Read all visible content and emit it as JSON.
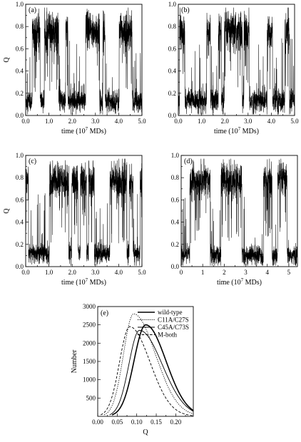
{
  "chart_data": [
    {
      "type": "line",
      "panel_label": "(a)",
      "xlabel": "time (10",
      "xlabel_sup": "7",
      "xlabel_tail": " MDs)",
      "ylabel": "Q",
      "xlim": [
        0,
        5
      ],
      "ylim": [
        0,
        1
      ],
      "x_ticks": [
        0,
        0.5,
        1,
        1.5,
        2,
        2.5,
        3,
        3.5,
        4,
        4.5,
        5
      ],
      "x_tick_labels": [
        "0.0",
        "1.0",
        "2.0",
        "3.0",
        "4.0",
        "5.0"
      ],
      "y_tick_labels": [
        "0.0",
        "0.2",
        "0.4",
        "0.6",
        "0.8",
        "1.0"
      ],
      "y_ticks": [
        0,
        0.1,
        0.2,
        0.3,
        0.4,
        0.5,
        0.6,
        0.7,
        0.8,
        0.9,
        1.0
      ],
      "series": [
        {
          "x_start": 0,
          "x_end": 5,
          "high_mean": 0.76,
          "low_mean": 0.13,
          "noise": 0.085,
          "segments": [
            [
              0.0,
              0.28,
              "L"
            ],
            [
              0.28,
              0.62,
              "H"
            ],
            [
              0.62,
              0.8,
              "L"
            ],
            [
              0.8,
              1.42,
              "H"
            ],
            [
              1.42,
              1.72,
              "L"
            ],
            [
              1.72,
              1.82,
              "H"
            ],
            [
              1.82,
              2.58,
              "L"
            ],
            [
              2.58,
              3.18,
              "H"
            ],
            [
              3.18,
              3.32,
              "L"
            ],
            [
              3.32,
              3.42,
              "H"
            ],
            [
              3.42,
              4.02,
              "L"
            ],
            [
              4.02,
              4.58,
              "H"
            ],
            [
              4.58,
              5.0,
              "L"
            ]
          ]
        }
      ]
    },
    {
      "type": "line",
      "panel_label": "(b)",
      "xlabel": "time (10",
      "xlabel_sup": "7",
      "xlabel_tail": " MDs)",
      "ylabel": "",
      "xlim": [
        0,
        5
      ],
      "ylim": [
        0,
        1
      ],
      "x_ticks": [
        0,
        0.5,
        1,
        1.5,
        2,
        2.5,
        3,
        3.5,
        4,
        4.5,
        5
      ],
      "x_tick_labels": [
        "0.0",
        "1.0",
        "2.0",
        "3.0",
        "4.0",
        "5.0"
      ],
      "y_tick_labels": [
        "0.0",
        "0.2",
        "0.4",
        "0.6",
        "0.8",
        "1.0"
      ],
      "y_ticks": [
        0,
        0.1,
        0.2,
        0.3,
        0.4,
        0.5,
        0.6,
        0.7,
        0.8,
        0.9,
        1.0
      ],
      "series": [
        {
          "x_start": 0,
          "x_end": 5,
          "high_mean": 0.75,
          "low_mean": 0.13,
          "noise": 0.09,
          "segments": [
            [
              0.0,
              0.05,
              "L"
            ],
            [
              0.05,
              0.28,
              "H"
            ],
            [
              0.28,
              1.22,
              "L"
            ],
            [
              1.22,
              1.38,
              "H"
            ],
            [
              1.38,
              1.72,
              "L"
            ],
            [
              1.72,
              1.85,
              "H"
            ],
            [
              1.85,
              1.98,
              "L"
            ],
            [
              1.98,
              2.75,
              "H"
            ],
            [
              2.75,
              2.82,
              "L"
            ],
            [
              2.82,
              3.05,
              "H"
            ],
            [
              3.05,
              3.82,
              "L"
            ],
            [
              3.82,
              4.05,
              "H"
            ],
            [
              4.05,
              4.58,
              "L"
            ],
            [
              4.58,
              4.78,
              "H"
            ],
            [
              4.78,
              5.0,
              "L"
            ]
          ]
        }
      ]
    },
    {
      "type": "line",
      "panel_label": "(c)",
      "xlabel": "time (10",
      "xlabel_sup": "7",
      "xlabel_tail": " MDs)",
      "ylabel": "Q",
      "xlim": [
        0,
        5
      ],
      "ylim": [
        0,
        1
      ],
      "x_ticks": [
        0,
        0.5,
        1,
        1.5,
        2,
        2.5,
        3,
        3.5,
        4,
        4.5,
        5
      ],
      "x_tick_labels": [
        "0.0",
        "1.0",
        "2.0",
        "3.0",
        "4.0",
        "5.0"
      ],
      "y_tick_labels": [
        "0.0",
        "0.2",
        "0.4",
        "0.6",
        "0.8",
        "1.0"
      ],
      "y_ticks": [
        0,
        0.1,
        0.2,
        0.3,
        0.4,
        0.5,
        0.6,
        0.7,
        0.8,
        0.9,
        1.0
      ],
      "series": [
        {
          "x_start": 0,
          "x_end": 5,
          "high_mean": 0.77,
          "low_mean": 0.12,
          "noise": 0.08,
          "segments": [
            [
              0.0,
              0.12,
              "H"
            ],
            [
              0.12,
              1.02,
              "L"
            ],
            [
              1.02,
              1.85,
              "H"
            ],
            [
              1.85,
              1.98,
              "L"
            ],
            [
              1.98,
              2.25,
              "H"
            ],
            [
              2.25,
              2.35,
              "L"
            ],
            [
              2.35,
              2.62,
              "H"
            ],
            [
              2.62,
              2.7,
              "L"
            ],
            [
              2.7,
              2.95,
              "H"
            ],
            [
              2.95,
              3.62,
              "L"
            ],
            [
              3.62,
              3.7,
              "H"
            ],
            [
              3.7,
              4.35,
              "H"
            ],
            [
              4.35,
              4.45,
              "L"
            ],
            [
              4.45,
              4.62,
              "H"
            ],
            [
              4.62,
              4.92,
              "L"
            ],
            [
              4.92,
              5.0,
              "H"
            ]
          ]
        }
      ]
    },
    {
      "type": "line",
      "panel_label": "(d)",
      "xlabel": "time (10",
      "xlabel_sup": "7",
      "xlabel_tail": " MDs)",
      "ylabel": "",
      "xlim": [
        0,
        5.4
      ],
      "ylim": [
        0,
        1
      ],
      "x_ticks": [
        0,
        0.5,
        1,
        1.5,
        2,
        2.5,
        3,
        3.5,
        4,
        4.5,
        5
      ],
      "x_tick_labels": [
        "0",
        "1",
        "2",
        "3",
        "4",
        "5"
      ],
      "y_tick_labels": [
        "0.0",
        "0.2",
        "0.4",
        "0.6",
        "0.8",
        "1.0"
      ],
      "y_ticks": [
        0,
        0.1,
        0.2,
        0.3,
        0.4,
        0.5,
        0.6,
        0.7,
        0.8,
        0.9,
        1.0
      ],
      "series": [
        {
          "x_start": 0,
          "x_end": 5.4,
          "high_mean": 0.78,
          "low_mean": 0.1,
          "noise": 0.075,
          "segments": [
            [
              0.0,
              0.4,
              "L"
            ],
            [
              0.4,
              1.35,
              "H"
            ],
            [
              1.35,
              1.85,
              "L"
            ],
            [
              1.85,
              2.82,
              "H"
            ],
            [
              2.82,
              3.82,
              "L"
            ],
            [
              3.82,
              4.22,
              "H"
            ],
            [
              4.22,
              4.48,
              "L"
            ],
            [
              4.48,
              4.92,
              "H"
            ],
            [
              4.92,
              5.4,
              "L"
            ]
          ]
        }
      ]
    },
    {
      "type": "line",
      "panel_label": "(e)",
      "xlabel": "Q",
      "ylabel": "Number",
      "xlim": [
        0,
        0.245
      ],
      "ylim": [
        0,
        3000
      ],
      "x_ticks": [
        0,
        0.025,
        0.05,
        0.075,
        0.1,
        0.125,
        0.15,
        0.175,
        0.2,
        0.225
      ],
      "x_tick_labels": [
        "0.00",
        "0.05",
        "0.10",
        "0.15",
        "0.20"
      ],
      "y_ticks": [
        500,
        1000,
        1500,
        2000,
        2500,
        3000
      ],
      "y_tick_labels": [
        "500",
        "1000",
        "1500",
        "2000",
        "2500",
        "3000"
      ],
      "legend_position": "top-right",
      "series": [
        {
          "name": "wild-type",
          "style": "solid-thick",
          "mu": 0.123,
          "peak": 2500,
          "sigma_left": 0.03,
          "sigma_right": 0.052,
          "x_end": 0.245
        },
        {
          "name": "C11A/C27S",
          "style": "dotted",
          "mu": 0.092,
          "peak": 2800,
          "sigma_left": 0.026,
          "sigma_right": 0.056,
          "x_end": 0.245
        },
        {
          "name": "C45A/C73S",
          "style": "solid-thin",
          "mu": 0.107,
          "peak": 2350,
          "sigma_left": 0.027,
          "sigma_right": 0.058,
          "x_end": 0.245
        },
        {
          "name": "M-both",
          "style": "dashed",
          "mu": 0.082,
          "peak": 2450,
          "sigma_left": 0.026,
          "sigma_right": 0.052,
          "x_end": 0.245
        }
      ]
    }
  ]
}
